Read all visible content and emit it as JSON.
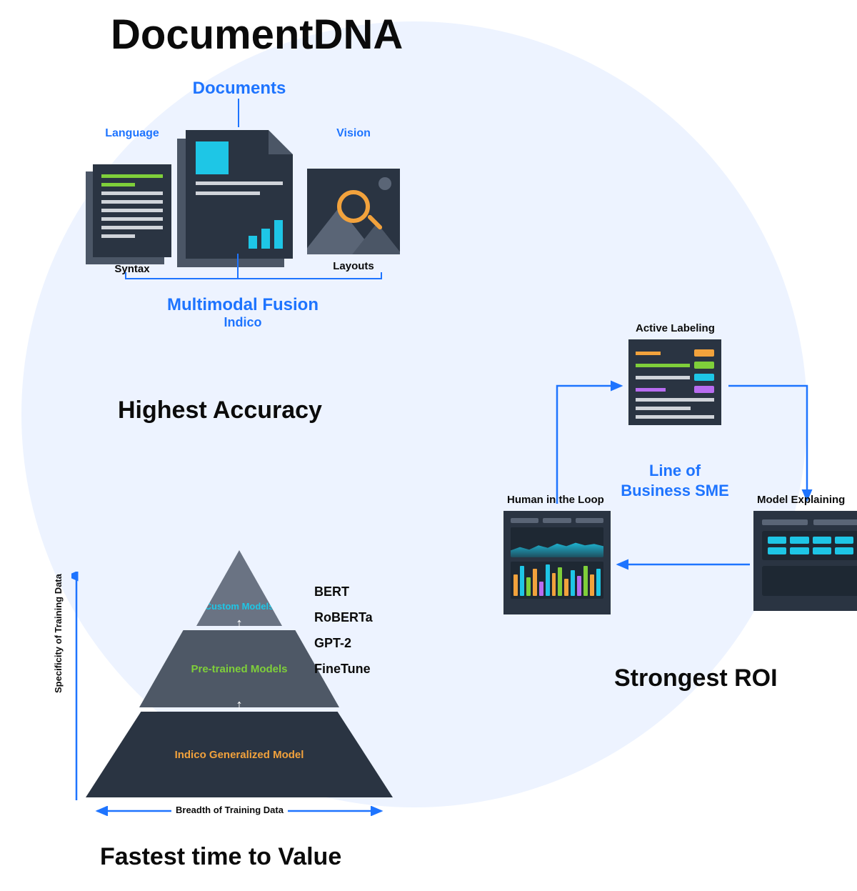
{
  "title": "DocumentDNA",
  "colors": {
    "accent_blue": "#1e74ff",
    "cyan": "#1ec6e6",
    "green": "#7fcf3a",
    "orange": "#f2a23c",
    "purple": "#b86cf0",
    "dark_panel": "#2a3442",
    "mid_panel": "#4e5866",
    "light_panel": "#6a7383",
    "bg_circle": "#edf3ff",
    "text": "#0b0b0b"
  },
  "top": {
    "heading": "Documents",
    "cols": {
      "language": {
        "label": "Language",
        "sublabel": "Syntax"
      },
      "documents": {
        "sublabel": ""
      },
      "vision": {
        "label": "Vision",
        "sublabel": "Layouts"
      }
    },
    "fusion": {
      "title": "Multimodal Fusion",
      "subtitle": "Indico"
    },
    "section_heading": "Highest Accuracy",
    "doc_bar_heights": [
      18,
      28,
      40
    ]
  },
  "roi": {
    "labels": {
      "active_labeling": "Active Labeling",
      "model_explaining": "Model Explaining",
      "human_in_loop": "Human in the Loop"
    },
    "center": "Line of Business SME",
    "section_heading": "Strongest ROI",
    "arrow_color": "#1e74ff",
    "hl_bar_colors": [
      "#f2a23c",
      "#1ec6e6",
      "#7fcf3a",
      "#f2a23c",
      "#b86cf0",
      "#1ec6e6",
      "#f2a23c",
      "#7fcf3a",
      "#f2a23c",
      "#1ec6e6",
      "#b86cf0",
      "#7fcf3a",
      "#f2a23c",
      "#1ec6e6"
    ],
    "hl_bar_heights": [
      30,
      42,
      26,
      38,
      20,
      44,
      32,
      40,
      24,
      36,
      28,
      42,
      30,
      38
    ]
  },
  "pyramid": {
    "layers": {
      "top": "Custom Models",
      "mid": "Pre-trained Models",
      "bottom": "Indico Generalized Model"
    },
    "layer_colors": {
      "top": "#6a7383",
      "mid": "#4e5866",
      "bottom": "#2a3442"
    },
    "label_colors": {
      "top": "#1ec6e6",
      "mid": "#7fcf3a",
      "bottom": "#f2a23c"
    },
    "models": [
      "BERT",
      "RoBERTa",
      "GPT-2",
      "FineTune"
    ],
    "y_axis": "Specificity of Training Data",
    "x_axis": "Breadth of Training Data",
    "section_heading": "Fastest time to Value",
    "axis_color": "#1e74ff"
  }
}
